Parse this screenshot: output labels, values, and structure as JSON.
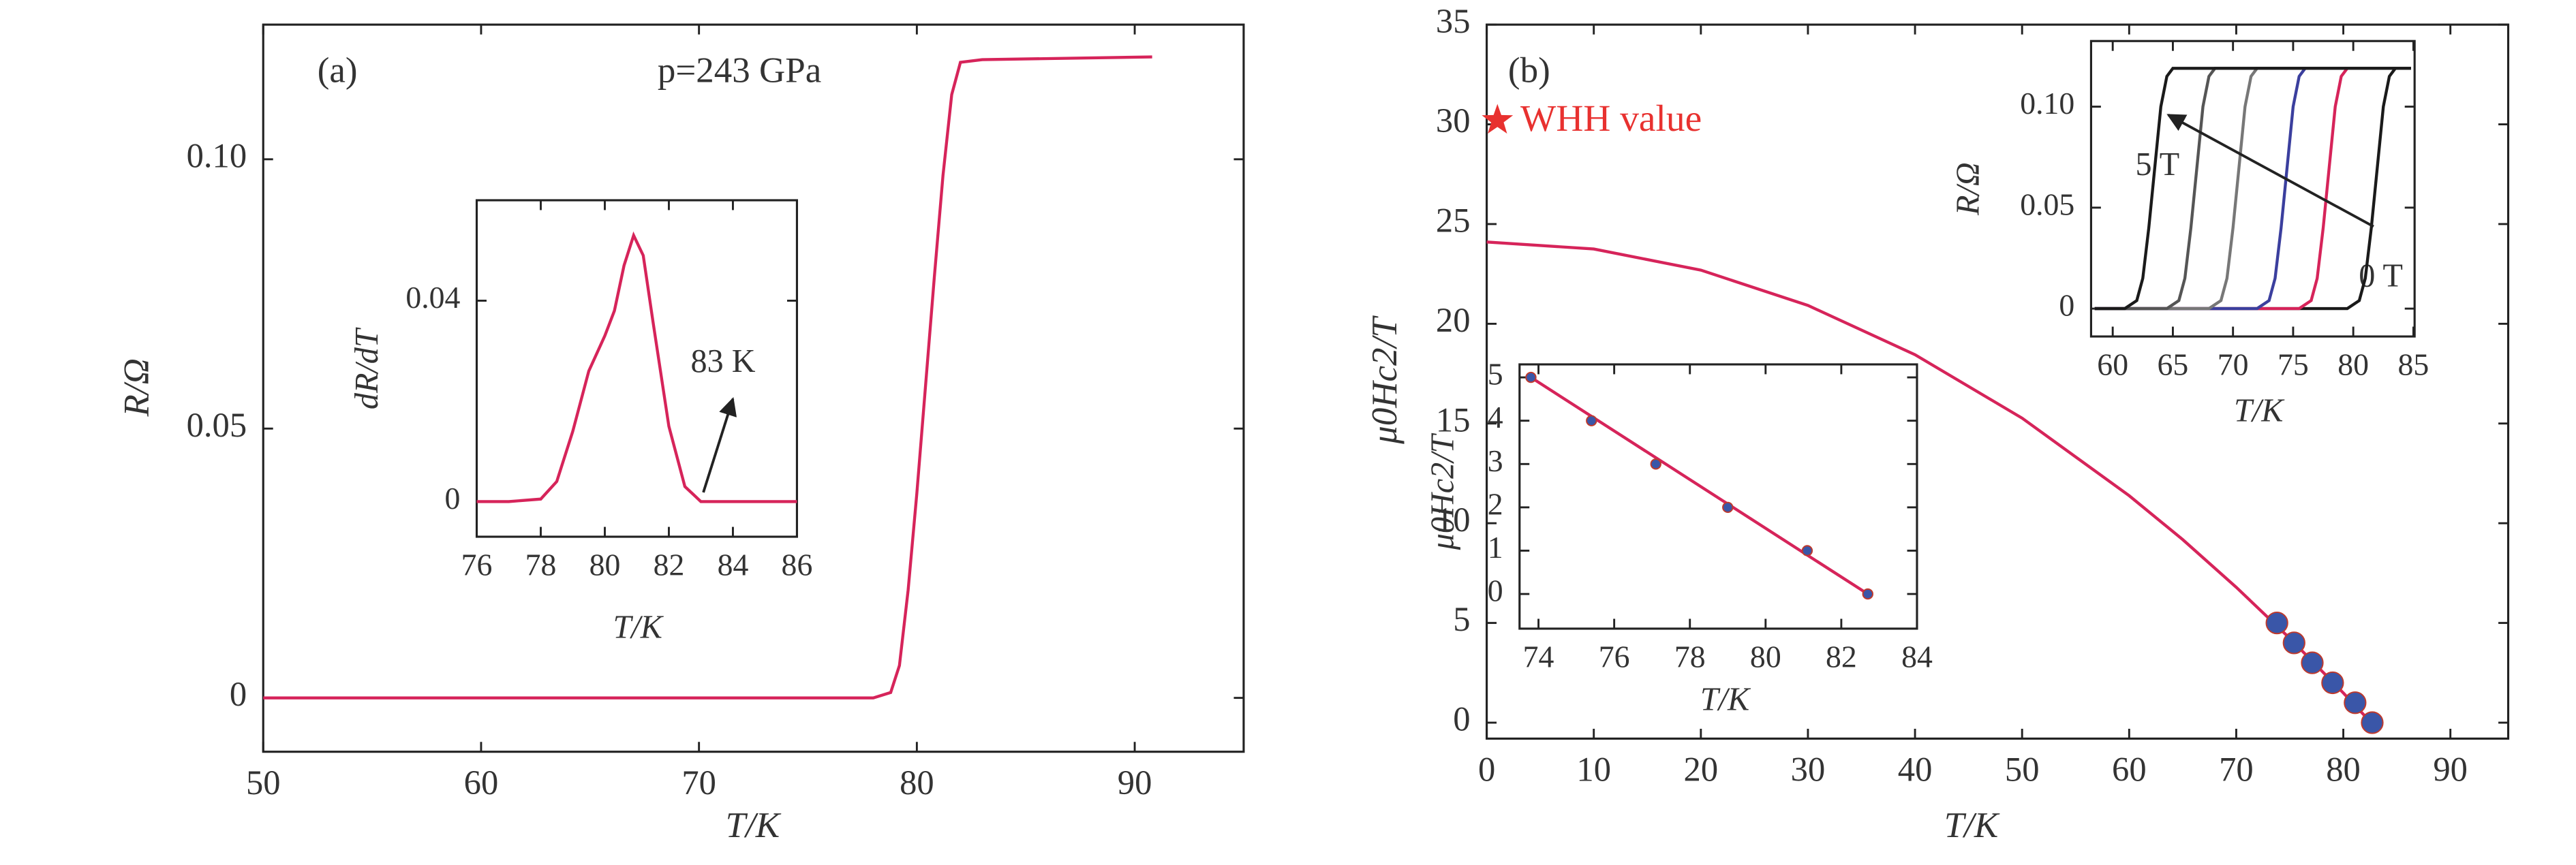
{
  "chart_data": [
    {
      "type": "line",
      "xlabel": "T/K",
      "ylabel": "R/Ω",
      "annotations": [
        "(a)",
        "p=243 GPa"
      ],
      "xlim": [
        50,
        95
      ],
      "ylim": [
        -0.01,
        0.125
      ],
      "xticks": [
        50,
        60,
        70,
        80,
        90
      ],
      "yticks": [
        0,
        0.05,
        {
          "value": 0.1,
          "label": "0.10"
        }
      ],
      "series": [
        {
          "mode": "line",
          "color": "#d6245a",
          "x": [
            50,
            60,
            70,
            78,
            78.8,
            79.2,
            79.6,
            80,
            80.4,
            80.8,
            81.2,
            81.6,
            82,
            83,
            90.8
          ],
          "values": [
            0,
            0,
            0,
            0,
            0.001,
            0.006,
            0.02,
            0.038,
            0.058,
            0.078,
            0.097,
            0.112,
            0.118,
            0.1185,
            0.119
          ]
        }
      ]
    },
    {
      "type": "line",
      "xlabel": "T/K",
      "ylabel": "dR/dT",
      "annotations": [
        "83 K"
      ],
      "xlim": [
        76,
        86
      ],
      "ylim": [
        -0.007,
        0.06
      ],
      "xticks": [
        76,
        78,
        80,
        82,
        84,
        86
      ],
      "yticks": [
        0,
        0.04
      ],
      "series": [
        {
          "mode": "line",
          "color": "#d6245a",
          "x": [
            76,
            77,
            78,
            78.5,
            79,
            79.5,
            80,
            80.3,
            80.6,
            80.9,
            81.2,
            81.5,
            82,
            82.5,
            83,
            84,
            86
          ],
          "values": [
            0,
            0,
            0.0005,
            0.004,
            0.014,
            0.026,
            0.033,
            0.038,
            0.047,
            0.053,
            0.049,
            0.036,
            0.015,
            0.003,
            0,
            0,
            0
          ]
        }
      ]
    },
    {
      "type": "line",
      "xlabel": "T/K",
      "ylabel": "μ0Hc2/T",
      "annotations": [
        "(b)"
      ],
      "xlim": [
        0,
        95.4
      ],
      "ylim": [
        -0.8,
        35
      ],
      "xticks": [
        0,
        10,
        20,
        30,
        40,
        50,
        60,
        70,
        80,
        90
      ],
      "yticks": [
        0,
        5,
        10,
        15,
        20,
        25,
        30,
        35
      ],
      "series": [
        {
          "mode": "line",
          "color": "#d6245a",
          "x": [
            0,
            10,
            20,
            30,
            40,
            50,
            60,
            65,
            70,
            75,
            80,
            82.6
          ],
          "values": [
            24.1,
            23.75,
            22.69,
            20.92,
            18.45,
            15.27,
            11.38,
            9.18,
            6.79,
            4.23,
            1.49,
            0
          ]
        },
        {
          "mode": "circle",
          "color": "#3a56a8",
          "x": [
            73.8,
            75.4,
            77.1,
            79,
            81.1,
            82.7
          ],
          "values": [
            5,
            4,
            3,
            2,
            1,
            0
          ]
        },
        {
          "mode": "star",
          "name": "WHH value",
          "color": "#e8312f",
          "x": [
            1
          ],
          "values": [
            30.2
          ]
        }
      ]
    },
    {
      "type": "line",
      "xlabel": "T/K",
      "ylabel": "μ0Hc2/T",
      "xlim": [
        73.5,
        84
      ],
      "ylim": [
        -0.8,
        5.3
      ],
      "xticks": [
        74,
        76,
        78,
        80,
        82,
        84
      ],
      "yticks": [
        0,
        1,
        2,
        3,
        4,
        5
      ],
      "series": [
        {
          "mode": "line",
          "color": "#d6245a",
          "x": [
            73.8,
            82.7
          ],
          "values": [
            5,
            0
          ]
        },
        {
          "mode": "dot",
          "color": "#3a56a8",
          "x": [
            73.8,
            75.4,
            77.1,
            79,
            81.1,
            82.7
          ],
          "values": [
            5,
            4,
            3,
            2,
            1,
            0
          ]
        }
      ]
    },
    {
      "type": "line",
      "xlabel": "T/K",
      "ylabel": "R/Ω",
      "annotations": [
        "5 T",
        "0 T"
      ],
      "xlim": [
        58.2,
        85.1
      ],
      "ylim": [
        -0.0138,
        0.1325
      ],
      "xticks": [
        60,
        65,
        70,
        75,
        80,
        85
      ],
      "yticks": [
        0,
        0.05,
        {
          "value": 0.1,
          "label": "0.10"
        }
      ],
      "series": [
        {
          "mode": "line",
          "color": "#1a1a1a",
          "x": [
            58.5,
            79.5,
            80.5,
            81,
            81.5,
            82,
            82.5,
            83,
            83.5,
            84.8
          ],
          "values": [
            0,
            0,
            0.004,
            0.015,
            0.04,
            0.07,
            0.1,
            0.115,
            0.119,
            0.119
          ]
        },
        {
          "mode": "line",
          "color": "#d6245a",
          "x": [
            58.5,
            75.5,
            76.5,
            77,
            77.5,
            78,
            78.5,
            79,
            79.5,
            84.8
          ],
          "values": [
            0,
            0,
            0.004,
            0.015,
            0.04,
            0.07,
            0.1,
            0.115,
            0.119,
            0.119
          ]
        },
        {
          "mode": "line",
          "color": "#3b3f9e",
          "x": [
            58.5,
            72,
            73,
            73.5,
            74,
            74.5,
            75,
            75.5,
            76,
            84.8
          ],
          "values": [
            0,
            0,
            0.004,
            0.015,
            0.04,
            0.07,
            0.1,
            0.115,
            0.119,
            0.119
          ]
        },
        {
          "mode": "line",
          "color": "#777777",
          "x": [
            58.5,
            68,
            69,
            69.5,
            70,
            70.5,
            71,
            71.5,
            72,
            84.8
          ],
          "values": [
            0,
            0,
            0.004,
            0.015,
            0.04,
            0.07,
            0.1,
            0.115,
            0.119,
            0.119
          ]
        },
        {
          "mode": "line",
          "color": "#555555",
          "x": [
            58.5,
            64.5,
            65.5,
            66,
            66.5,
            67,
            67.5,
            68,
            68.5,
            84.8
          ],
          "values": [
            0,
            0,
            0.004,
            0.015,
            0.04,
            0.07,
            0.1,
            0.115,
            0.119,
            0.119
          ]
        },
        {
          "mode": "line",
          "color": "#1a1a1a",
          "x": [
            58.5,
            61,
            62,
            62.5,
            63,
            63.5,
            64,
            64.5,
            65,
            84.8
          ],
          "values": [
            0,
            0,
            0.004,
            0.015,
            0.04,
            0.07,
            0.1,
            0.115,
            0.119,
            0.119
          ]
        }
      ]
    }
  ]
}
